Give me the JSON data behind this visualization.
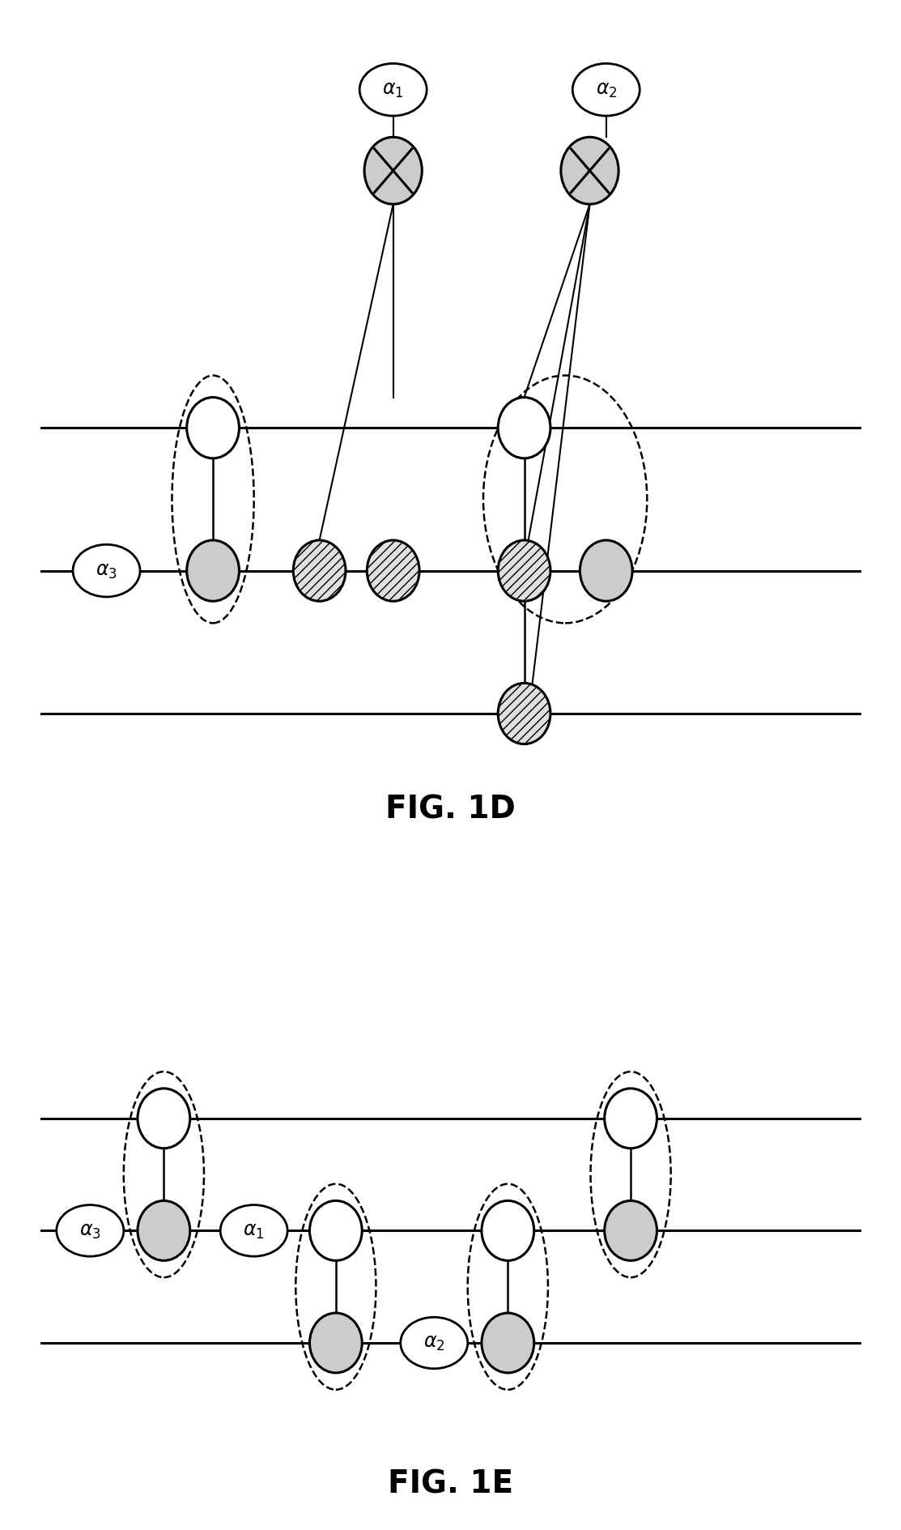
{
  "fig_width": 11.13,
  "fig_height": 18.9,
  "bg_color": "#ffffff",
  "line_color": "#000000",
  "gate_fill_white": "#ffffff",
  "gate_fill_gray": "#cccccc",
  "gate_fill_hatch": "#e0e0e0",
  "fig1d_label": "FIG. 1D",
  "fig1e_label": "FIG. 1E"
}
